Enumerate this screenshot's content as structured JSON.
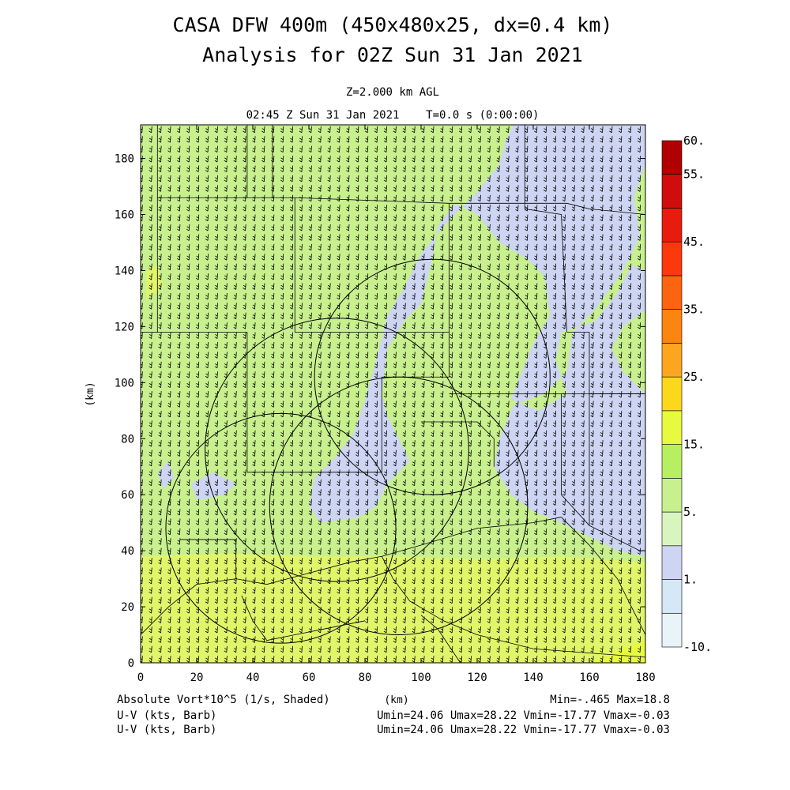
{
  "header": {
    "title_line1": "CASA DFW 400m (450x480x25, dx=0.4 km)",
    "title_line2": "Analysis for 02Z Sun 31 Jan 2021",
    "level": "Z=2.000 km AGL",
    "time": "02:45 Z Sun 31 Jan 2021    T=0.0 s (0:00:00)"
  },
  "footer": {
    "field_label": "Absolute Vort*10^5 (1/s, Shaded)",
    "xunit": "(km)",
    "minmax": "Min=-.465 Max=18.8",
    "barb1_label": "U-V (kts, Barb)",
    "barb1_stats": "Umin=24.06 Umax=28.22 Vmin=-17.77 Vmax=-0.03",
    "barb2_label": "U-V (kts, Barb)",
    "barb2_stats": "Umin=24.06 Umax=28.22 Vmin=-17.77 Vmax=-0.03"
  },
  "chart_data": {
    "type": "heatmap",
    "xlabel": "",
    "ylabel": "(km)",
    "xlim": [
      0,
      180
    ],
    "ylim": [
      0,
      192
    ],
    "xticks": [
      0,
      20,
      40,
      60,
      80,
      100,
      120,
      140,
      160,
      180
    ],
    "yticks": [
      0,
      20,
      40,
      60,
      80,
      100,
      120,
      140,
      160,
      180
    ],
    "colorbar": {
      "labels": [
        "-10.",
        "1.",
        "5.",
        "15.",
        "25.",
        "35.",
        "45.",
        "55.",
        "60."
      ],
      "colors": [
        "#e8f4fa",
        "#d4e8f7",
        "#cdd5f3",
        "#d8f5c0",
        "#c8f08e",
        "#b8ef60",
        "#e8fa40",
        "#fcd81c",
        "#fca620",
        "#fc8410",
        "#fc6410",
        "#fc380c",
        "#e81c0c",
        "#d00c0c",
        "#b00000"
      ]
    },
    "field_colors": {
      "low": "#cdd5f3",
      "mid": "#c8f08e",
      "high": "#e0f56a",
      "peak": "#e8fa40"
    },
    "wind": {
      "u_min": 24.06,
      "u_max": 28.22,
      "v_min": -17.77,
      "v_max": -0.03
    },
    "radar_rings": [
      {
        "cx": 104,
        "cy": 102,
        "r": 42
      },
      {
        "cx": 70,
        "cy": 76,
        "r": 47
      },
      {
        "cx": 92,
        "cy": 56,
        "r": 46
      },
      {
        "cx": 50,
        "cy": 48,
        "r": 41
      }
    ]
  }
}
